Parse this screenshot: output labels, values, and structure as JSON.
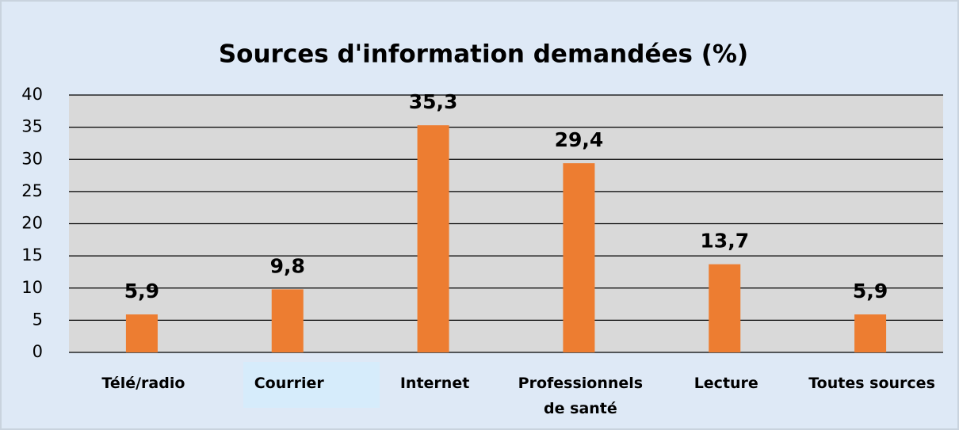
{
  "chart_data": {
    "type": "bar",
    "title": "Sources d'information demandées (%)",
    "categories": [
      "Télé/radio",
      "Courrier",
      "Internet",
      "Professionnels de santé",
      "Lecture",
      "Toutes sources"
    ],
    "values": [
      5.9,
      9.8,
      35.3,
      29.4,
      13.7,
      5.9
    ],
    "value_labels": [
      "5,9",
      "9,8",
      "35,3",
      "29,4",
      "13,7",
      "5,9"
    ],
    "color": "#ed7d31",
    "ylim": [
      0,
      40
    ],
    "yticks": [
      0,
      5,
      10,
      15,
      20,
      25,
      30,
      35,
      40
    ],
    "grid": true
  }
}
